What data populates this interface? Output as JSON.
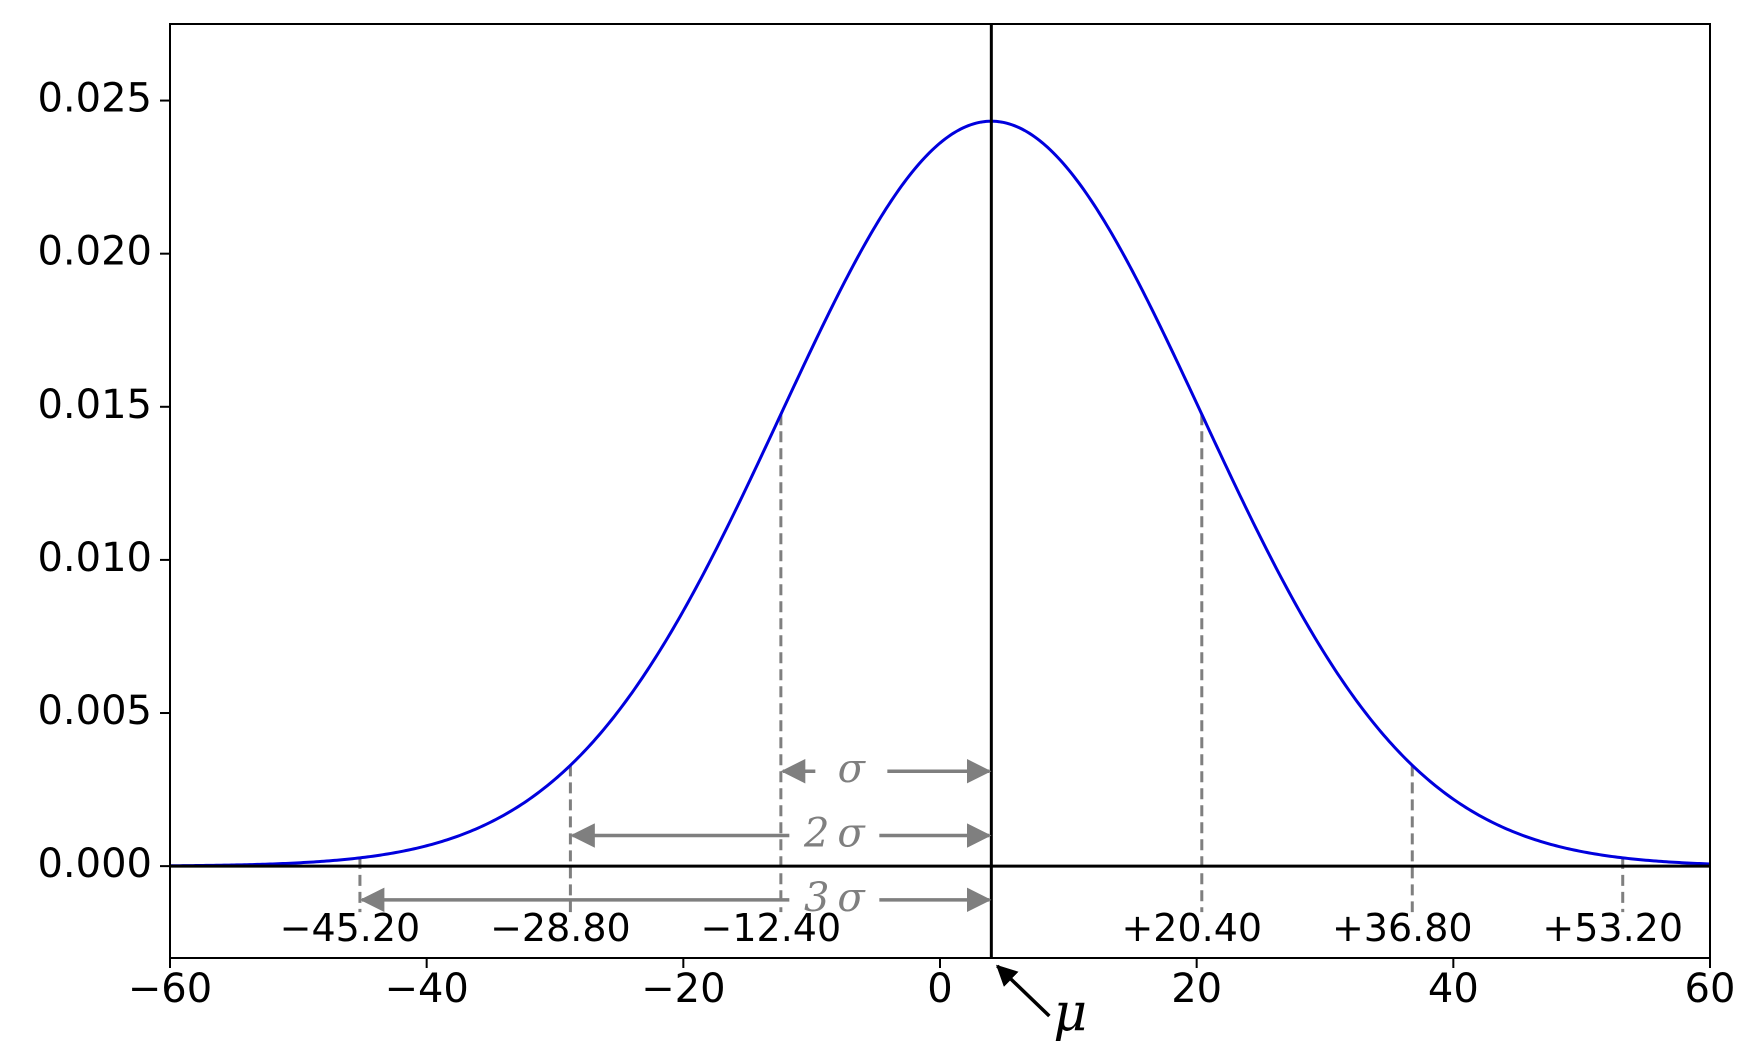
{
  "chart_data": {
    "type": "line",
    "title": "",
    "xlabel": "",
    "ylabel": "",
    "xlim": [
      -60,
      60
    ],
    "ylim": [
      -0.003,
      0.0275
    ],
    "grid": false,
    "mean": 4,
    "sigma": 16.4,
    "series": [
      {
        "color": "#0000dd",
        "function": "normal_pdf"
      }
    ],
    "xticks": [
      -60,
      -40,
      -20,
      0,
      20,
      40,
      60
    ],
    "xtick_labels": [
      "−60",
      "−40",
      "−20",
      "0",
      "20",
      "40",
      "60"
    ],
    "yticks": [
      0.0,
      0.005,
      0.01,
      0.015,
      0.02,
      0.025
    ],
    "ytick_labels": [
      "0.000",
      "0.005",
      "0.010",
      "0.015",
      "0.020",
      "0.025"
    ],
    "sigma_points": [
      {
        "x": -45.2,
        "label": "−45.20"
      },
      {
        "x": -28.8,
        "label": "−28.80"
      },
      {
        "x": -12.4,
        "label": "−12.40"
      },
      {
        "x": 20.4,
        "label": "+20.40"
      },
      {
        "x": 36.8,
        "label": "+36.80"
      },
      {
        "x": 53.2,
        "label": "+53.20"
      }
    ],
    "sigma_arrows": [
      {
        "label": "σ",
        "from_x": -12.4,
        "to_x": 4,
        "y": 0.0031
      },
      {
        "label": "2 σ",
        "from_x": -28.8,
        "to_x": 4,
        "y": 0.001
      },
      {
        "label": "3 σ",
        "from_x": -45.2,
        "to_x": 4,
        "y": -0.0011
      }
    ],
    "mean_annotation": {
      "label": "μ",
      "x": 4
    },
    "colors": {
      "curve": "#0000dd",
      "guides": "#7f7f7f",
      "axes": "#000000"
    }
  }
}
